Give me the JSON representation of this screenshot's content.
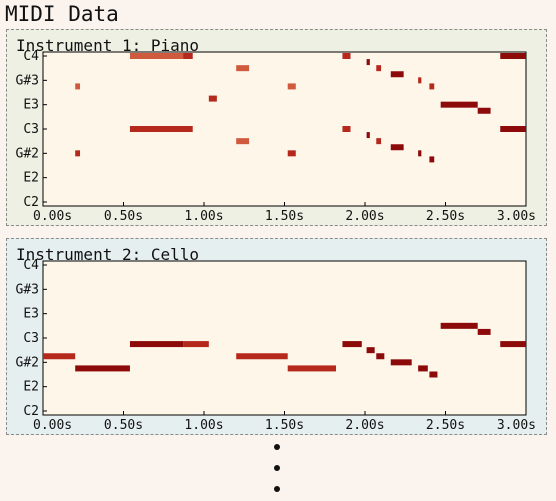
{
  "page": {
    "title": "MIDI Data"
  },
  "charts": [
    {
      "key": "piano",
      "title": "Instrument 1: Piano",
      "y_tick_labels": [
        "C4",
        "G#3",
        "E3",
        "C3",
        "G#2",
        "E2",
        "C2"
      ]
    },
    {
      "key": "cello",
      "title": "Instrument 2: Cello",
      "y_tick_labels": [
        "C4",
        "G#3",
        "E3",
        "C3",
        "G#2",
        "E2",
        "C2"
      ]
    }
  ],
  "x_tick_labels": [
    "0.00s",
    "0.50s",
    "1.00s",
    "1.50s",
    "2.00s",
    "2.50s",
    "3.00s"
  ],
  "colors": {
    "dark": "#8c0a0a",
    "mid": "#b5291c",
    "light": "#cf5a3e",
    "plot_bg": "#fff6ea"
  },
  "chart_data": [
    {
      "type": "piano-roll",
      "title": "Instrument 1: Piano",
      "xlabel": "",
      "ylabel": "",
      "xlim": [
        0.0,
        3.0
      ],
      "ylim_pitch": [
        "C2",
        "C4"
      ],
      "notes": [
        {
          "start": 0.2,
          "end": 0.23,
          "pitch": 55,
          "intensity": "light"
        },
        {
          "start": 0.2,
          "end": 0.23,
          "pitch": 44,
          "intensity": "mid"
        },
        {
          "start": 0.54,
          "end": 0.87,
          "pitch": 60,
          "intensity": "light"
        },
        {
          "start": 0.87,
          "end": 0.93,
          "pitch": 60,
          "intensity": "mid"
        },
        {
          "start": 0.54,
          "end": 0.93,
          "pitch": 48,
          "intensity": "mid"
        },
        {
          "start": 1.03,
          "end": 1.08,
          "pitch": 53,
          "intensity": "mid"
        },
        {
          "start": 1.2,
          "end": 1.28,
          "pitch": 58,
          "intensity": "light"
        },
        {
          "start": 1.2,
          "end": 1.28,
          "pitch": 46,
          "intensity": "light"
        },
        {
          "start": 1.52,
          "end": 1.57,
          "pitch": 55,
          "intensity": "light"
        },
        {
          "start": 1.52,
          "end": 1.57,
          "pitch": 44,
          "intensity": "mid"
        },
        {
          "start": 1.86,
          "end": 1.91,
          "pitch": 60,
          "intensity": "mid"
        },
        {
          "start": 1.86,
          "end": 1.91,
          "pitch": 48,
          "intensity": "mid"
        },
        {
          "start": 2.01,
          "end": 2.03,
          "pitch": 59,
          "intensity": "dark"
        },
        {
          "start": 2.01,
          "end": 2.03,
          "pitch": 47,
          "intensity": "dark"
        },
        {
          "start": 2.07,
          "end": 2.1,
          "pitch": 58,
          "intensity": "mid"
        },
        {
          "start": 2.07,
          "end": 2.1,
          "pitch": 46,
          "intensity": "mid"
        },
        {
          "start": 2.16,
          "end": 2.24,
          "pitch": 57,
          "intensity": "dark"
        },
        {
          "start": 2.16,
          "end": 2.24,
          "pitch": 45,
          "intensity": "dark"
        },
        {
          "start": 2.33,
          "end": 2.35,
          "pitch": 56,
          "intensity": "mid"
        },
        {
          "start": 2.33,
          "end": 2.35,
          "pitch": 44,
          "intensity": "dark"
        },
        {
          "start": 2.4,
          "end": 2.43,
          "pitch": 55,
          "intensity": "mid"
        },
        {
          "start": 2.4,
          "end": 2.43,
          "pitch": 43,
          "intensity": "dark"
        },
        {
          "start": 2.47,
          "end": 2.7,
          "pitch": 52,
          "intensity": "dark"
        },
        {
          "start": 2.7,
          "end": 2.78,
          "pitch": 51,
          "intensity": "dark"
        },
        {
          "start": 2.84,
          "end": 3.0,
          "pitch": 60,
          "intensity": "dark"
        },
        {
          "start": 2.84,
          "end": 3.0,
          "pitch": 48,
          "intensity": "dark"
        }
      ]
    },
    {
      "type": "piano-roll",
      "title": "Instrument 2: Cello",
      "xlabel": "",
      "ylabel": "",
      "xlim": [
        0.0,
        3.0
      ],
      "ylim_pitch": [
        "C2",
        "C4"
      ],
      "notes": [
        {
          "start": 0.0,
          "end": 0.2,
          "pitch": 45,
          "intensity": "mid"
        },
        {
          "start": 0.2,
          "end": 0.54,
          "pitch": 43,
          "intensity": "dark"
        },
        {
          "start": 0.54,
          "end": 0.87,
          "pitch": 47,
          "intensity": "dark"
        },
        {
          "start": 0.87,
          "end": 1.03,
          "pitch": 47,
          "intensity": "mid"
        },
        {
          "start": 1.2,
          "end": 1.52,
          "pitch": 45,
          "intensity": "mid"
        },
        {
          "start": 1.52,
          "end": 1.82,
          "pitch": 43,
          "intensity": "mid"
        },
        {
          "start": 1.86,
          "end": 1.98,
          "pitch": 47,
          "intensity": "dark"
        },
        {
          "start": 2.01,
          "end": 2.06,
          "pitch": 46,
          "intensity": "dark"
        },
        {
          "start": 2.07,
          "end": 2.12,
          "pitch": 45,
          "intensity": "dark"
        },
        {
          "start": 2.16,
          "end": 2.29,
          "pitch": 44,
          "intensity": "dark"
        },
        {
          "start": 2.33,
          "end": 2.39,
          "pitch": 43,
          "intensity": "dark"
        },
        {
          "start": 2.4,
          "end": 2.45,
          "pitch": 42,
          "intensity": "dark"
        },
        {
          "start": 2.47,
          "end": 2.7,
          "pitch": 50,
          "intensity": "dark"
        },
        {
          "start": 2.7,
          "end": 2.78,
          "pitch": 49,
          "intensity": "dark"
        },
        {
          "start": 2.84,
          "end": 3.0,
          "pitch": 47,
          "intensity": "dark"
        }
      ]
    }
  ]
}
